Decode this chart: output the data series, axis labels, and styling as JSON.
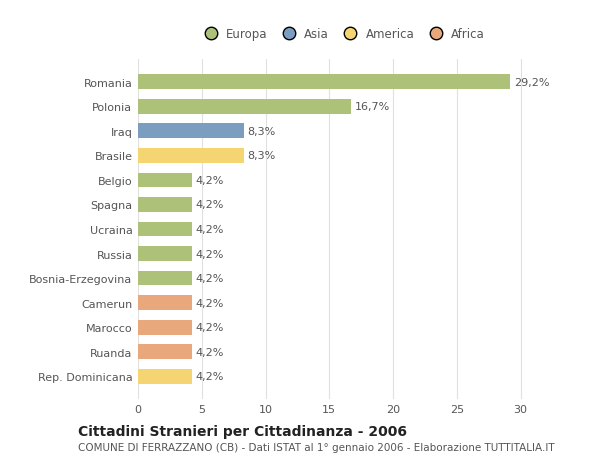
{
  "title": "Cittadini Stranieri per Cittadinanza - 2006",
  "subtitle": "COMUNE DI FERRAZZANO (CB) - Dati ISTAT al 1° gennaio 2006 - Elaborazione TUTTITALIA.IT",
  "categories": [
    "Romania",
    "Polonia",
    "Iraq",
    "Brasile",
    "Belgio",
    "Spagna",
    "Ucraina",
    "Russia",
    "Bosnia-Erzegovina",
    "Camerun",
    "Marocco",
    "Ruanda",
    "Rep. Dominicana"
  ],
  "values": [
    29.2,
    16.7,
    8.3,
    8.3,
    4.2,
    4.2,
    4.2,
    4.2,
    4.2,
    4.2,
    4.2,
    4.2,
    4.2
  ],
  "labels": [
    "29,2%",
    "16,7%",
    "8,3%",
    "8,3%",
    "4,2%",
    "4,2%",
    "4,2%",
    "4,2%",
    "4,2%",
    "4,2%",
    "4,2%",
    "4,2%",
    "4,2%"
  ],
  "bar_colors": [
    "#adc178",
    "#adc178",
    "#7b9ec0",
    "#f5d572",
    "#adc178",
    "#adc178",
    "#adc178",
    "#adc178",
    "#adc178",
    "#e8a87c",
    "#e8a87c",
    "#e8a87c",
    "#f5d572"
  ],
  "legend": [
    {
      "label": "Europa",
      "color": "#adc178"
    },
    {
      "label": "Asia",
      "color": "#7b9ec0"
    },
    {
      "label": "America",
      "color": "#f5d572"
    },
    {
      "label": "Africa",
      "color": "#e8a87c"
    }
  ],
  "xlim": [
    0,
    32
  ],
  "xticks": [
    0,
    5,
    10,
    15,
    20,
    25,
    30
  ],
  "background_color": "#ffffff",
  "plot_bg_color": "#ffffff",
  "grid_color": "#e0e0e0",
  "bar_height": 0.6,
  "label_fontsize": 8,
  "tick_fontsize": 8,
  "title_fontsize": 10,
  "subtitle_fontsize": 7.5,
  "text_color": "#555555",
  "title_color": "#222222"
}
